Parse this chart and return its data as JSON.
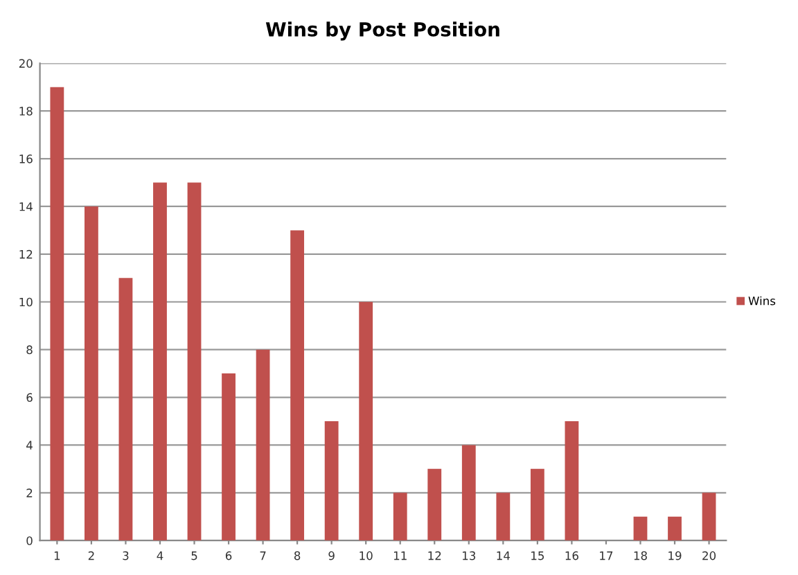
{
  "chart_data": {
    "type": "bar",
    "title": "Wins by Post Position",
    "categories": [
      "1",
      "2",
      "3",
      "4",
      "5",
      "6",
      "7",
      "8",
      "9",
      "10",
      "11",
      "12",
      "13",
      "14",
      "15",
      "16",
      "17",
      "18",
      "19",
      "20"
    ],
    "series": [
      {
        "name": "Wins",
        "color": "#c0504d",
        "values": [
          19,
          14,
          11,
          15,
          15,
          7,
          8,
          13,
          5,
          10,
          2,
          3,
          4,
          2,
          3,
          5,
          0,
          1,
          1,
          2
        ]
      }
    ],
    "ylim": [
      0,
      20
    ],
    "yticks": [
      0,
      2,
      4,
      6,
      8,
      10,
      12,
      14,
      16,
      18,
      20
    ],
    "grid": "y",
    "legend": "right"
  }
}
